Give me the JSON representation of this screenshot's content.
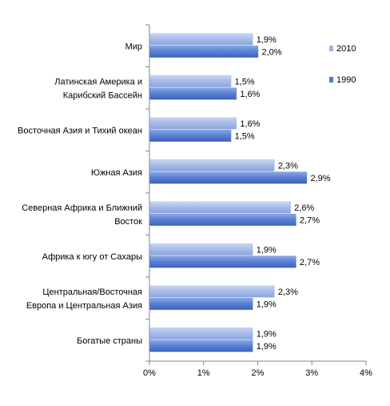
{
  "chart_data": {
    "type": "bar",
    "orientation": "horizontal",
    "categories": [
      "Мир",
      "Латинская Америка и Карибский Бассейн",
      "Восточная Азия и Тихий океан",
      "Южная Азия",
      "Северная Африка и Ближний Восток",
      "Африка к югу от Сахары",
      "Центральная/Восточная Европа и Центральная  Азия",
      "Богатые страны"
    ],
    "category_lines": [
      [
        "Мир"
      ],
      [
        "Латинская Америка и",
        "Карибский Бассейн"
      ],
      [
        "Восточная Азия и Тихий океан"
      ],
      [
        "Южная Азия"
      ],
      [
        "Северная Африка и Ближний",
        "Восток"
      ],
      [
        "Африка к югу от Сахары"
      ],
      [
        "Центральная/Восточная",
        "Европа и Центральная  Азия"
      ],
      [
        "Богатые страны"
      ]
    ],
    "series": [
      {
        "name": "2010",
        "values": [
          1.9,
          1.5,
          1.6,
          2.3,
          2.6,
          1.9,
          2.3,
          1.9
        ],
        "labels": [
          "1,9%",
          "1,5%",
          "1,6%",
          "2,3%",
          "2,6%",
          "1,9%",
          "2,3%",
          "1,9%"
        ],
        "color": "#9cb3e6"
      },
      {
        "name": "1990",
        "values": [
          2.0,
          1.6,
          1.5,
          2.9,
          2.7,
          2.7,
          1.9,
          1.9
        ],
        "labels": [
          "2,0%",
          "1,6%",
          "1,5%",
          "2,9%",
          "2,7%",
          "2,7%",
          "1,9%",
          "1,9%"
        ],
        "color": "#4f79d2"
      }
    ],
    "xlim": [
      0,
      4
    ],
    "xticks": [
      "0%",
      "1%",
      "2%",
      "3%",
      "4%"
    ],
    "grid": false,
    "legend": "right",
    "title": "",
    "xlabel": "",
    "ylabel": ""
  }
}
